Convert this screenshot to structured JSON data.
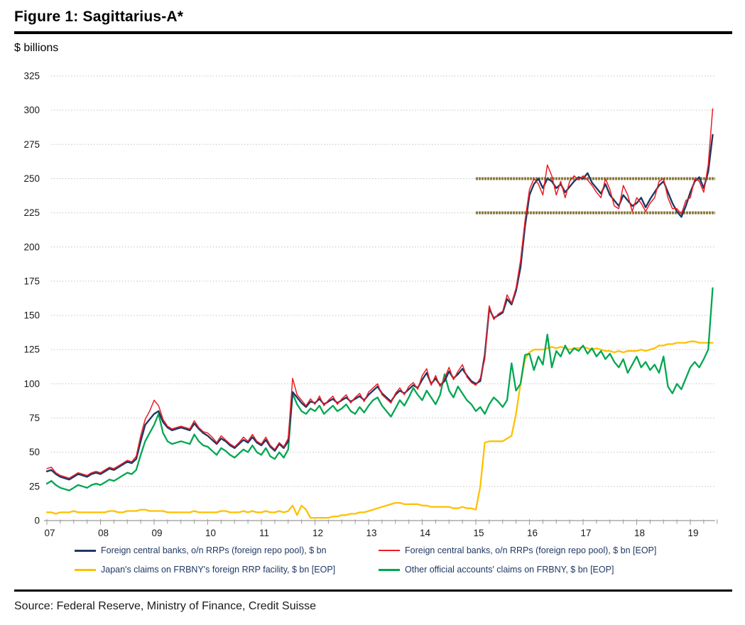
{
  "header": {
    "title": "Figure 1: Sagittarius-A*",
    "units_label": "$ billions"
  },
  "legend": [
    {
      "label": "Foreign central banks, o/n RRPs (foreign repo pool), $ bn",
      "color": "#1f3864",
      "thickness": 3
    },
    {
      "label": "Foreign central banks, o/n RRPs (foreign repo pool), $ bn [EOP]",
      "color": "#ee1c23",
      "thickness": 2
    },
    {
      "label": "Japan's claims on FRBNY's foreign RRP facility, $ bn [EOP]",
      "color": "#ffc000",
      "thickness": 3
    },
    {
      "label": "Other official accounts' claims on FRBNY, $ bn [EOP]",
      "color": "#00a651",
      "thickness": 3
    }
  ],
  "source": {
    "text": "Source: Federal Reserve, Ministry of Finance, Credit Suisse"
  },
  "chart_data": {
    "type": "line",
    "title": "Figure 1: Sagittarius-A*",
    "ylabel": "$ billions",
    "xlabel": "",
    "ylim": [
      0,
      325
    ],
    "ytick_step": 25,
    "grid": "horizontal-dotted",
    "legend_position": "bottom",
    "x_start": 2007,
    "frequency": "monthly",
    "x_tick_labels": [
      "07",
      "08",
      "09",
      "10",
      "11",
      "12",
      "13",
      "14",
      "15",
      "16",
      "17",
      "18",
      "19"
    ],
    "x_minor_tick": "quarterly",
    "xlim": [
      2007,
      2019.55
    ],
    "reference_lines": [
      {
        "value": 250,
        "from_year": 2015.0,
        "color": "#8a7a3a",
        "width": 4
      },
      {
        "value": 225,
        "from_year": 2015.0,
        "color": "#8a7a3a",
        "width": 4
      }
    ],
    "series": [
      {
        "name": "Foreign central banks, o/n RRPs (foreign repo pool), $ bn",
        "color": "#1f3864",
        "width": 2.4,
        "values": [
          36,
          37,
          34,
          32,
          31,
          30,
          32,
          34,
          33,
          32,
          34,
          35,
          34,
          36,
          38,
          37,
          39,
          41,
          43,
          42,
          45,
          58,
          70,
          74,
          78,
          80,
          72,
          68,
          66,
          67,
          68,
          67,
          66,
          71,
          67,
          64,
          62,
          59,
          56,
          60,
          58,
          55,
          53,
          56,
          59,
          57,
          61,
          57,
          55,
          59,
          54,
          51,
          56,
          53,
          58,
          94,
          90,
          86,
          83,
          87,
          86,
          89,
          85,
          87,
          89,
          86,
          88,
          90,
          87,
          89,
          91,
          88,
          92,
          95,
          98,
          93,
          90,
          87,
          92,
          95,
          93,
          96,
          99,
          97,
          103,
          108,
          100,
          104,
          99,
          102,
          109,
          104,
          107,
          111,
          106,
          102,
          100,
          102,
          121,
          155,
          148,
          150,
          152,
          162,
          158,
          168,
          185,
          215,
          238,
          246,
          250,
          243,
          250,
          248,
          243,
          246,
          240,
          244,
          248,
          251,
          250,
          254,
          247,
          243,
          239,
          246,
          238,
          234,
          230,
          238,
          234,
          230,
          232,
          236,
          229,
          235,
          240,
          245,
          248,
          240,
          232,
          226,
          222,
          230,
          240,
          248,
          251,
          243,
          255,
          282
        ]
      },
      {
        "name": "Foreign central banks, o/n RRPs (foreign repo pool), $ bn [EOP]",
        "color": "#ee1c23",
        "width": 1.5,
        "values": [
          38,
          39,
          35,
          33,
          32,
          31,
          33,
          35,
          34,
          33,
          35,
          36,
          35,
          37,
          39,
          38,
          40,
          42,
          44,
          43,
          47,
          62,
          74,
          80,
          88,
          84,
          74,
          69,
          67,
          68,
          69,
          68,
          67,
          73,
          68,
          65,
          64,
          61,
          57,
          62,
          59,
          56,
          54,
          57,
          61,
          58,
          63,
          58,
          56,
          61,
          55,
          52,
          57,
          54,
          60,
          104,
          92,
          88,
          84,
          89,
          85,
          91,
          84,
          88,
          91,
          85,
          89,
          92,
          86,
          90,
          93,
          87,
          94,
          97,
          100,
          92,
          89,
          86,
          93,
          97,
          92,
          98,
          101,
          96,
          106,
          111,
          99,
          106,
          98,
          104,
          112,
          103,
          109,
          114,
          105,
          101,
          99,
          104,
          118,
          157,
          147,
          151,
          153,
          165,
          159,
          170,
          190,
          219,
          242,
          250,
          246,
          238,
          260,
          252,
          238,
          248,
          236,
          248,
          252,
          249,
          252,
          249,
          245,
          240,
          236,
          250,
          242,
          230,
          228,
          245,
          238,
          226,
          236,
          232,
          226,
          232,
          236,
          248,
          250,
          236,
          228,
          228,
          224,
          234,
          236,
          250,
          248,
          240,
          260,
          301
        ]
      },
      {
        "name": "Japan's claims on FRBNY's foreign RRP facility, $ bn [EOP]",
        "color": "#ffc000",
        "width": 2.3,
        "values": [
          6,
          6,
          5,
          6,
          6,
          6,
          7,
          6,
          6,
          6,
          6,
          6,
          6,
          6,
          7,
          7,
          6,
          6,
          7,
          7,
          7,
          8,
          8,
          7,
          7,
          7,
          7,
          6,
          6,
          6,
          6,
          6,
          6,
          7,
          6,
          6,
          6,
          6,
          6,
          7,
          7,
          6,
          6,
          6,
          7,
          6,
          7,
          6,
          6,
          7,
          6,
          6,
          7,
          6,
          7,
          11,
          4,
          11,
          8,
          2,
          2,
          2,
          2,
          2,
          3,
          3,
          4,
          4,
          5,
          5,
          6,
          6,
          7,
          8,
          9,
          10,
          11,
          12,
          13,
          13,
          12,
          12,
          12,
          12,
          11,
          11,
          10,
          10,
          10,
          10,
          10,
          9,
          9,
          10,
          9,
          9,
          8,
          25,
          57,
          58,
          58,
          58,
          58,
          60,
          62,
          78,
          100,
          118,
          123,
          125,
          125,
          125,
          126,
          127,
          126,
          127,
          126,
          125,
          126,
          126,
          127,
          126,
          125,
          126,
          125,
          124,
          124,
          123,
          124,
          123,
          124,
          124,
          124,
          125,
          124,
          125,
          126,
          128,
          128,
          129,
          129,
          130,
          130,
          130,
          131,
          131,
          130,
          130,
          130,
          130
        ]
      },
      {
        "name": "Other official accounts' claims on FRBNY, $ bn [EOP]",
        "color": "#00a651",
        "width": 2.3,
        "values": [
          27,
          29,
          26,
          24,
          23,
          22,
          24,
          26,
          25,
          24,
          26,
          27,
          26,
          28,
          30,
          29,
          31,
          33,
          35,
          34,
          37,
          48,
          58,
          64,
          70,
          78,
          64,
          58,
          56,
          57,
          58,
          57,
          56,
          63,
          58,
          55,
          54,
          51,
          48,
          53,
          51,
          48,
          46,
          49,
          52,
          50,
          55,
          50,
          48,
          53,
          47,
          45,
          50,
          46,
          52,
          93,
          85,
          80,
          78,
          82,
          80,
          84,
          78,
          81,
          84,
          80,
          82,
          85,
          80,
          78,
          83,
          79,
          84,
          88,
          90,
          84,
          80,
          76,
          82,
          88,
          84,
          90,
          97,
          92,
          88,
          95,
          90,
          85,
          92,
          107,
          95,
          90,
          98,
          93,
          88,
          85,
          80,
          83,
          78,
          85,
          90,
          87,
          83,
          88,
          115,
          95,
          100,
          121,
          122,
          110,
          120,
          114,
          136,
          112,
          124,
          120,
          128,
          122,
          126,
          124,
          128,
          122,
          126,
          120,
          124,
          118,
          122,
          116,
          112,
          118,
          108,
          114,
          120,
          112,
          116,
          110,
          114,
          108,
          120,
          98,
          93,
          100,
          96,
          104,
          112,
          116,
          112,
          118,
          125,
          170
        ]
      }
    ]
  }
}
